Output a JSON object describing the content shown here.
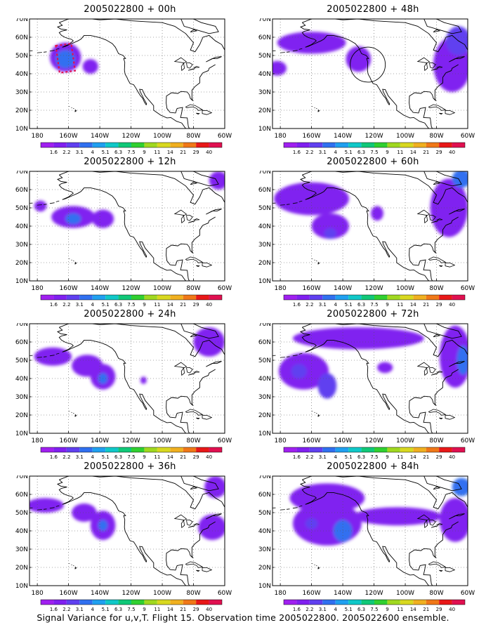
{
  "caption": "Signal Variance for u,v,T. Flight 15. Observation time 2005022800. 2005022600 ensemble.",
  "colorbar": {
    "labels": [
      "1.6",
      "2.2",
      "3.1",
      "4",
      "5.1",
      "6.3",
      "7.5",
      "9",
      "11",
      "14",
      "21",
      "29",
      "40"
    ],
    "colors": [
      "#a020f0",
      "#8020f0",
      "#6040f0",
      "#3070f0",
      "#20a0f0",
      "#10c8c8",
      "#10c878",
      "#30d030",
      "#a0d820",
      "#d8d820",
      "#f0b020",
      "#f07818",
      "#e81818",
      "#e01050"
    ]
  },
  "chart_data": [
    {
      "type": "heatmap",
      "title": "2005022800 + 00h",
      "xticks": [
        "180",
        "160W",
        "140W",
        "120W",
        "100W",
        "80W",
        "60W"
      ],
      "yticks": [
        "10N",
        "20N",
        "30N",
        "40N",
        "50N",
        "60N",
        "70N"
      ],
      "lon_range": [
        -185,
        -60
      ],
      "lat_range": [
        10,
        70
      ],
      "blobs": [
        {
          "lon": -162,
          "lat": 49,
          "rx": 10,
          "ry": 8,
          "level": 2
        },
        {
          "lon": -162,
          "lat": 48,
          "rx": 6,
          "ry": 5,
          "level": 4
        },
        {
          "lon": -146,
          "lat": 44,
          "rx": 5,
          "ry": 4,
          "level": 2
        }
      ],
      "annotations": [
        {
          "type": "dashed-box",
          "lon_min": -167,
          "lon_max": -157,
          "lat_min": 41,
          "lat_max": 56
        }
      ]
    },
    {
      "type": "heatmap",
      "title": "2005022800 + 48h",
      "xticks": [
        "180",
        "160W",
        "140W",
        "120W",
        "100W",
        "80W",
        "60W"
      ],
      "yticks": [
        "10N",
        "20N",
        "30N",
        "40N",
        "50N",
        "60N",
        "70N"
      ],
      "lon_range": [
        -185,
        -60
      ],
      "lat_range": [
        10,
        70
      ],
      "blobs": [
        {
          "lon": -160,
          "lat": 57,
          "rx": 22,
          "ry": 6,
          "level": 2
        },
        {
          "lon": -182,
          "lat": 43,
          "rx": 6,
          "ry": 4,
          "level": 2
        },
        {
          "lon": -130,
          "lat": 48,
          "rx": 8,
          "ry": 7,
          "level": 2
        },
        {
          "lon": -70,
          "lat": 45,
          "rx": 12,
          "ry": 15,
          "level": 2
        },
        {
          "lon": -66,
          "lat": 58,
          "rx": 8,
          "ry": 8,
          "level": 3
        }
      ],
      "annotations": [
        {
          "type": "circle",
          "lon": -124,
          "lat": 45,
          "r": 6
        }
      ]
    },
    {
      "type": "heatmap",
      "title": "2005022800 + 12h",
      "xticks": [
        "180",
        "160W",
        "140W",
        "120W",
        "100W",
        "80W",
        "60W"
      ],
      "yticks": [
        "10N",
        "20N",
        "30N",
        "40N",
        "50N",
        "60N",
        "70N"
      ],
      "lon_range": [
        -185,
        -60
      ],
      "lat_range": [
        10,
        70
      ],
      "blobs": [
        {
          "lon": -157,
          "lat": 45,
          "rx": 14,
          "ry": 6,
          "level": 2
        },
        {
          "lon": -157,
          "lat": 44,
          "rx": 5,
          "ry": 3,
          "level": 4
        },
        {
          "lon": -138,
          "lat": 44,
          "rx": 7,
          "ry": 5,
          "level": 2
        },
        {
          "lon": -178,
          "lat": 51,
          "rx": 4,
          "ry": 3,
          "level": 2
        },
        {
          "lon": -64,
          "lat": 65,
          "rx": 6,
          "ry": 5,
          "level": 2
        }
      ],
      "annotations": []
    },
    {
      "type": "heatmap",
      "title": "2005022800 + 60h",
      "xticks": [
        "180",
        "160W",
        "140W",
        "120W",
        "100W",
        "80W",
        "60W"
      ],
      "yticks": [
        "10N",
        "20N",
        "30N",
        "40N",
        "50N",
        "60N",
        "70N"
      ],
      "lon_range": [
        -185,
        -60
      ],
      "lat_range": [
        10,
        70
      ],
      "blobs": [
        {
          "lon": -160,
          "lat": 55,
          "rx": 24,
          "ry": 9,
          "level": 2
        },
        {
          "lon": -148,
          "lat": 40,
          "rx": 12,
          "ry": 7,
          "level": 2
        },
        {
          "lon": -148,
          "lat": 36,
          "rx": 4,
          "ry": 3,
          "level": 3
        },
        {
          "lon": -118,
          "lat": 47,
          "rx": 4,
          "ry": 4,
          "level": 2
        },
        {
          "lon": -72,
          "lat": 50,
          "rx": 12,
          "ry": 16,
          "level": 2
        },
        {
          "lon": -64,
          "lat": 66,
          "rx": 6,
          "ry": 5,
          "level": 4
        }
      ],
      "annotations": []
    },
    {
      "type": "heatmap",
      "title": "2005022800 + 24h",
      "xticks": [
        "180",
        "160W",
        "140W",
        "120W",
        "100W",
        "80W",
        "60W"
      ],
      "yticks": [
        "10N",
        "20N",
        "30N",
        "40N",
        "50N",
        "60N",
        "70N"
      ],
      "lon_range": [
        -185,
        -60
      ],
      "lat_range": [
        10,
        70
      ],
      "blobs": [
        {
          "lon": -170,
          "lat": 52,
          "rx": 12,
          "ry": 5,
          "level": 2
        },
        {
          "lon": -148,
          "lat": 47,
          "rx": 10,
          "ry": 6,
          "level": 2
        },
        {
          "lon": -138,
          "lat": 41,
          "rx": 8,
          "ry": 7,
          "level": 2
        },
        {
          "lon": -138,
          "lat": 40,
          "rx": 3,
          "ry": 3,
          "level": 4
        },
        {
          "lon": -112,
          "lat": 39,
          "rx": 2,
          "ry": 2,
          "level": 2
        },
        {
          "lon": -70,
          "lat": 60,
          "rx": 10,
          "ry": 8,
          "level": 2
        }
      ],
      "annotations": []
    },
    {
      "type": "heatmap",
      "title": "2005022800 + 72h",
      "xticks": [
        "180",
        "160W",
        "140W",
        "120W",
        "100W",
        "80W",
        "60W"
      ],
      "yticks": [
        "10N",
        "20N",
        "30N",
        "40N",
        "50N",
        "60N",
        "70N"
      ],
      "lon_range": [
        -185,
        -60
      ],
      "lat_range": [
        10,
        70
      ],
      "blobs": [
        {
          "lon": -130,
          "lat": 62,
          "rx": 42,
          "ry": 6,
          "level": 2
        },
        {
          "lon": -165,
          "lat": 44,
          "rx": 16,
          "ry": 10,
          "level": 2
        },
        {
          "lon": -168,
          "lat": 44,
          "rx": 5,
          "ry": 4,
          "level": 3
        },
        {
          "lon": -150,
          "lat": 36,
          "rx": 6,
          "ry": 7,
          "level": 3
        },
        {
          "lon": -113,
          "lat": 46,
          "rx": 5,
          "ry": 3,
          "level": 2
        },
        {
          "lon": -68,
          "lat": 52,
          "rx": 10,
          "ry": 17,
          "level": 2
        },
        {
          "lon": -63,
          "lat": 50,
          "rx": 4,
          "ry": 8,
          "level": 4
        }
      ],
      "annotations": []
    },
    {
      "type": "heatmap",
      "title": "2005022800 + 36h",
      "xticks": [
        "180",
        "160W",
        "140W",
        "120W",
        "100W",
        "80W",
        "60W"
      ],
      "yticks": [
        "10N",
        "20N",
        "30N",
        "40N",
        "50N",
        "60N",
        "70N"
      ],
      "lon_range": [
        -185,
        -60
      ],
      "lat_range": [
        10,
        70
      ],
      "blobs": [
        {
          "lon": -175,
          "lat": 54,
          "rx": 12,
          "ry": 4,
          "level": 2
        },
        {
          "lon": -150,
          "lat": 50,
          "rx": 8,
          "ry": 5,
          "level": 2
        },
        {
          "lon": -138,
          "lat": 43,
          "rx": 8,
          "ry": 8,
          "level": 2
        },
        {
          "lon": -138,
          "lat": 43,
          "rx": 3,
          "ry": 3,
          "level": 4
        },
        {
          "lon": -68,
          "lat": 42,
          "rx": 9,
          "ry": 7,
          "level": 2
        },
        {
          "lon": -66,
          "lat": 64,
          "rx": 7,
          "ry": 6,
          "level": 2
        }
      ],
      "annotations": []
    },
    {
      "type": "heatmap",
      "title": "2005022800 + 84h",
      "xticks": [
        "180",
        "160W",
        "140W",
        "120W",
        "100W",
        "80W",
        "60W"
      ],
      "yticks": [
        "10N",
        "20N",
        "30N",
        "40N",
        "50N",
        "60N",
        "70N"
      ],
      "lon_range": [
        -185,
        -60
      ],
      "lat_range": [
        10,
        70
      ],
      "blobs": [
        {
          "lon": -150,
          "lat": 58,
          "rx": 24,
          "ry": 8,
          "level": 2
        },
        {
          "lon": -150,
          "lat": 44,
          "rx": 22,
          "ry": 12,
          "level": 2
        },
        {
          "lon": -140,
          "lat": 40,
          "rx": 6,
          "ry": 6,
          "level": 4
        },
        {
          "lon": -160,
          "lat": 44,
          "rx": 4,
          "ry": 3,
          "level": 3
        },
        {
          "lon": -105,
          "lat": 48,
          "rx": 28,
          "ry": 5,
          "level": 2
        },
        {
          "lon": -68,
          "lat": 46,
          "rx": 10,
          "ry": 12,
          "level": 2
        },
        {
          "lon": -64,
          "lat": 64,
          "rx": 6,
          "ry": 5,
          "level": 4
        }
      ],
      "annotations": []
    }
  ]
}
